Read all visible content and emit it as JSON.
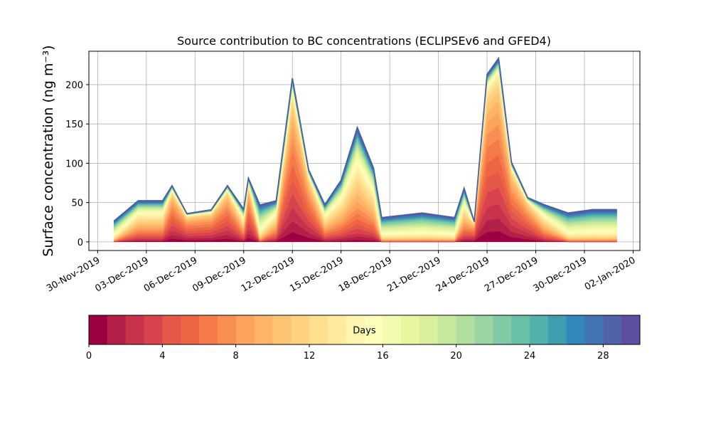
{
  "chart_data": {
    "type": "stacked_area",
    "title": "Source contribution to BC concentrations (ECLIPSEv6 and GFED4)",
    "y_label": "Surface concentration (ng m⁻³)",
    "x": [
      "2019-12-01T00:00",
      "2019-12-02T12:00",
      "2019-12-04T00:00",
      "2019-12-04T14:00",
      "2019-12-05T12:00",
      "2019-12-07T00:00",
      "2019-12-08T00:00",
      "2019-12-09T00:00",
      "2019-12-09T07:00",
      "2019-12-10T00:00",
      "2019-12-11T00:00",
      "2019-12-12T00:00",
      "2019-12-13T00:00",
      "2019-12-14T00:00",
      "2019-12-15T00:00",
      "2019-12-16T00:00",
      "2019-12-17T00:00",
      "2019-12-17T12:00",
      "2019-12-20T00:00",
      "2019-12-22T00:00",
      "2019-12-22T14:00",
      "2019-12-23T05:00",
      "2019-12-24T00:00",
      "2019-12-24T17:00",
      "2019-12-25T12:00",
      "2019-12-26T12:00",
      "2019-12-27T12:00",
      "2019-12-29T00:00",
      "2019-12-30T12:00",
      "2020-01-01T00:00"
    ],
    "xlim": [
      "2019-11-29T11:00",
      "2020-01-02T10:00"
    ],
    "xticks": [
      {
        "value": "2019-11-30T00:00",
        "label": "30-Nov-2019"
      },
      {
        "value": "2019-12-03T00:00",
        "label": "03-Dec-2019"
      },
      {
        "value": "2019-12-06T00:00",
        "label": "06-Dec-2019"
      },
      {
        "value": "2019-12-09T00:00",
        "label": "09-Dec-2019"
      },
      {
        "value": "2019-12-12T00:00",
        "label": "12-Dec-2019"
      },
      {
        "value": "2019-12-15T00:00",
        "label": "15-Dec-2019"
      },
      {
        "value": "2019-12-18T00:00",
        "label": "18-Dec-2019"
      },
      {
        "value": "2019-12-21T00:00",
        "label": "21-Dec-2019"
      },
      {
        "value": "2019-12-24T00:00",
        "label": "24-Dec-2019"
      },
      {
        "value": "2019-12-27T00:00",
        "label": "27-Dec-2019"
      },
      {
        "value": "2019-12-30T00:00",
        "label": "30-Dec-2019"
      },
      {
        "value": "2020-01-02T00:00",
        "label": "02-Jan-2020"
      }
    ],
    "ylim": [
      -11,
      242.5
    ],
    "yticks": [
      0,
      50,
      100,
      150,
      200
    ],
    "grid": true,
    "outline_color": "#4a5fa5",
    "series": [
      {
        "color": "#9e0142",
        "values": [
          0,
          1,
          1,
          4.2,
          2.1,
          2.4,
          4.2,
          0.8,
          4.8,
          0,
          1,
          12.3,
          5.4,
          0.9,
          1.5,
          2.8,
          1.8,
          0,
          0,
          0,
          1.3,
          1.5,
          12.6,
          13.8,
          6,
          3.3,
          0.9,
          0,
          0,
          0
        ]
      },
      {
        "color": "#b41f48",
        "values": [
          0,
          1.5,
          1.5,
          4.9,
          2.5,
          2.8,
          4.9,
          1.2,
          5.6,
          0,
          1.5,
          14.4,
          6.3,
          1.4,
          2.3,
          4.2,
          2.7,
          0,
          0,
          0,
          2,
          1.8,
          14.7,
          16.1,
          7,
          3.9,
          1.4,
          0,
          0,
          0
        ]
      },
      {
        "color": "#c8324a",
        "values": [
          0.1,
          1.5,
          1.5,
          5.6,
          2.8,
          3.2,
          5.6,
          1.2,
          6.4,
          0.2,
          1.5,
          16.4,
          7.2,
          1.4,
          2.3,
          4.2,
          2.7,
          0.2,
          0.2,
          0.2,
          2,
          2,
          16.8,
          18.4,
          8,
          4.4,
          1.4,
          0.2,
          0.2,
          0.2
        ]
      },
      {
        "color": "#d8434e",
        "values": [
          0.1,
          2,
          2,
          6.3,
          3.2,
          3.6,
          6.3,
          1.6,
          7.2,
          0.2,
          2,
          18.5,
          8.1,
          1.8,
          3,
          5.6,
          3.6,
          0.2,
          0.2,
          0.2,
          2.6,
          2.3,
          18.9,
          20.7,
          9,
          5,
          1.8,
          0.2,
          0.2,
          0.2
        ]
      },
      {
        "color": "#e55749",
        "values": [
          0.3,
          2,
          2,
          6.3,
          3.2,
          3.6,
          6.3,
          1.6,
          7.2,
          0.5,
          2,
          18.5,
          8.1,
          1.8,
          3,
          5.6,
          3.6,
          0.3,
          0.4,
          0.3,
          2.6,
          2.3,
          18.9,
          20.7,
          9,
          5,
          1.8,
          0.4,
          0.4,
          0.4
        ]
      },
      {
        "color": "#ee6544",
        "values": [
          0.3,
          2.5,
          2.5,
          6.3,
          3.2,
          3.6,
          6.3,
          2,
          7.2,
          0.5,
          2.5,
          18.5,
          8.1,
          2.3,
          3.8,
          7,
          4.5,
          0.3,
          0.4,
          0.3,
          3.3,
          2.3,
          18.9,
          20.7,
          9,
          5,
          2.3,
          0.4,
          0.4,
          0.4
        ]
      },
      {
        "color": "#f57a4a",
        "values": [
          0.3,
          2.5,
          2.5,
          6.3,
          3.2,
          3.6,
          6.3,
          2,
          7.2,
          0.5,
          2.5,
          18.5,
          8.1,
          2.3,
          3.8,
          7,
          4.5,
          0.3,
          0.4,
          0.3,
          3.3,
          2.3,
          18.9,
          20.7,
          9,
          5,
          2.3,
          0.4,
          0.4,
          0.4
        ]
      },
      {
        "color": "#f98e52",
        "values": [
          0.4,
          2.5,
          2.5,
          5.6,
          2.8,
          3.2,
          5.6,
          2,
          6.4,
          0.7,
          2.5,
          16.4,
          7.2,
          2.3,
          3.8,
          7,
          4.5,
          0.5,
          0.5,
          0.5,
          3.3,
          2,
          16.8,
          18.4,
          8,
          4.4,
          2.3,
          0.5,
          0.6,
          0.6
        ]
      },
      {
        "color": "#fca35d",
        "values": [
          0.5,
          3,
          3,
          4.9,
          2.5,
          2.8,
          4.9,
          2.4,
          5.6,
          0.9,
          3,
          14.4,
          6.3,
          2.7,
          4.5,
          8.4,
          5.4,
          0.6,
          0.7,
          0.6,
          3.9,
          1.8,
          14.7,
          16.1,
          7,
          3.9,
          2.7,
          0.7,
          0.8,
          0.8
        ]
      },
      {
        "color": "#fdb466",
        "values": [
          0.5,
          3,
          3,
          4.2,
          2.1,
          2.4,
          4.2,
          2.4,
          4.8,
          0.9,
          3,
          12.3,
          5.4,
          2.7,
          4.5,
          8.4,
          5.4,
          0.6,
          0.7,
          0.6,
          3.9,
          1.5,
          12.6,
          13.8,
          6,
          3.3,
          2.7,
          0.7,
          0.8,
          0.8
        ]
      },
      {
        "color": "#fdc473",
        "values": [
          0.8,
          3,
          3,
          3.5,
          1.8,
          2,
          3.5,
          2.4,
          4,
          1.4,
          3,
          10.3,
          4.5,
          2.7,
          4.5,
          8.4,
          5.4,
          0.9,
          1.1,
          0.9,
          3.9,
          1.3,
          10.5,
          11.5,
          5,
          2.8,
          2.7,
          1.1,
          1.2,
          1.2
        ]
      },
      {
        "color": "#fed281",
        "values": [
          0.8,
          3,
          3,
          2.8,
          1.4,
          1.6,
          2.8,
          2.4,
          3.2,
          1.4,
          3,
          8.2,
          3.6,
          2.7,
          4.5,
          8.4,
          5.4,
          0.9,
          1.1,
          0.9,
          3.9,
          1,
          8.4,
          9.2,
          4,
          2.2,
          2.7,
          1.1,
          1.2,
          1.2
        ]
      },
      {
        "color": "#fedf8f",
        "values": [
          1,
          3,
          3,
          2.1,
          1.1,
          1.2,
          2.1,
          2.4,
          2.4,
          1.8,
          3,
          6.2,
          2.7,
          2.7,
          4.5,
          8.4,
          5.4,
          1.2,
          1.4,
          1.2,
          3.9,
          0.8,
          6.3,
          6.9,
          3,
          1.7,
          2.7,
          1.4,
          1.6,
          1.6
        ]
      },
      {
        "color": "#feeb9d",
        "values": [
          1.3,
          2.5,
          2.5,
          1.4,
          0.7,
          0.8,
          1.4,
          2,
          1.6,
          2.3,
          2.5,
          4.1,
          1.8,
          2.3,
          3.8,
          7,
          4.5,
          1.5,
          1.8,
          1.5,
          3.3,
          0.5,
          4.2,
          4.6,
          2,
          1.1,
          2.3,
          1.8,
          2,
          2
        ]
      },
      {
        "color": "#fff5ae",
        "values": [
          1.5,
          2.5,
          2.5,
          1.1,
          0.5,
          0.6,
          1.1,
          2,
          1.2,
          2.7,
          2.5,
          3.1,
          1.4,
          2.3,
          3.8,
          7,
          4.5,
          1.8,
          2.1,
          1.8,
          3.3,
          0.4,
          3.2,
          3.5,
          1.5,
          0.8,
          2.3,
          2.1,
          2.4,
          2.4
        ]
      },
      {
        "color": "#fbfdb9",
        "values": [
          1.8,
          2,
          2,
          0.7,
          0.4,
          0.4,
          0.7,
          1.6,
          0.8,
          3.2,
          2,
          2.1,
          0.9,
          1.8,
          3,
          5.6,
          3.6,
          2.1,
          2.5,
          2.1,
          2.6,
          0.3,
          2.1,
          2.3,
          1,
          0.6,
          1.8,
          2.5,
          2.8,
          2.8
        ]
      },
      {
        "color": "#f3faad",
        "values": [
          1.8,
          2,
          2,
          0.7,
          0.4,
          0.4,
          0.7,
          1.6,
          0.8,
          3.2,
          2,
          2.1,
          0.9,
          1.8,
          3,
          5.6,
          3.6,
          2.1,
          2.5,
          2.1,
          2.6,
          0.3,
          2.1,
          2.3,
          1,
          0.6,
          1.8,
          2.5,
          2.8,
          2.8
        ]
      },
      {
        "color": "#e9f69f",
        "values": [
          1.8,
          1.5,
          1.5,
          0.4,
          0.2,
          0.2,
          0.4,
          1.2,
          0.4,
          3.2,
          1.5,
          1,
          0.5,
          1.4,
          2.3,
          4.2,
          2.7,
          2.1,
          2.5,
          2.1,
          2,
          0.1,
          1.1,
          1.2,
          0.5,
          0.3,
          1.4,
          2.5,
          2.8,
          2.8
        ]
      },
      {
        "color": "#d9ef9b",
        "values": [
          1.5,
          1.5,
          1.5,
          0.4,
          0.2,
          0.2,
          0.4,
          1.2,
          0.4,
          2.7,
          1.5,
          1,
          0.5,
          1.4,
          2.3,
          4.2,
          2.7,
          1.8,
          2.1,
          1.8,
          2,
          0.1,
          1.1,
          1.2,
          0.5,
          0.3,
          1.4,
          2.1,
          2.4,
          2.4
        ]
      },
      {
        "color": "#c6e89c",
        "values": [
          1.5,
          1,
          1,
          0.4,
          0.2,
          0.2,
          0.4,
          0.8,
          0.4,
          2.7,
          1,
          1,
          0.5,
          0.9,
          1.5,
          2.8,
          1.8,
          1.8,
          2.1,
          1.8,
          1.3,
          0.1,
          1.1,
          1.2,
          0.5,
          0.3,
          0.9,
          2.1,
          2.4,
          2.4
        ]
      },
      {
        "color": "#b1df9f",
        "values": [
          1.3,
          1,
          1,
          0.4,
          0.2,
          0.2,
          0.4,
          0.8,
          0.4,
          2.3,
          1,
          1,
          0.5,
          0.9,
          1.5,
          2.8,
          1.8,
          1.5,
          1.8,
          1.5,
          1.3,
          0.1,
          1.1,
          1.2,
          0.5,
          0.3,
          0.9,
          1.8,
          2,
          2
        ]
      },
      {
        "color": "#99d5a4",
        "values": [
          1.3,
          1,
          1,
          0.4,
          0.2,
          0.2,
          0.4,
          0.8,
          0.4,
          2.3,
          1,
          1,
          0.5,
          0.9,
          1.5,
          2.8,
          1.8,
          1.5,
          1.8,
          1.5,
          1.3,
          0.1,
          1.1,
          1.2,
          0.5,
          0.3,
          0.9,
          1.8,
          2,
          2
        ]
      },
      {
        "color": "#80cba5",
        "values": [
          1.3,
          1,
          1,
          0.3,
          0.1,
          0.2,
          0.3,
          0.8,
          0.3,
          2.3,
          1,
          0.8,
          0.4,
          0.9,
          1.5,
          2.8,
          1.8,
          1.5,
          1.8,
          1.5,
          1.3,
          0.1,
          0.8,
          0.9,
          0.4,
          0.2,
          0.9,
          1.8,
          2,
          2
        ]
      },
      {
        "color": "#68c1a6",
        "values": [
          1,
          1,
          1,
          0.3,
          0.1,
          0.2,
          0.3,
          0.8,
          0.3,
          1.8,
          1,
          0.8,
          0.4,
          0.9,
          1.5,
          2.8,
          1.8,
          1.2,
          1.4,
          1.2,
          1.3,
          0.1,
          0.8,
          0.9,
          0.4,
          0.2,
          0.9,
          1.4,
          1.6,
          1.6
        ]
      },
      {
        "color": "#53b0ab",
        "values": [
          1,
          0.8,
          0.8,
          0.3,
          0.1,
          0.2,
          0.3,
          0.6,
          0.3,
          1.8,
          0.8,
          0.8,
          0.4,
          0.7,
          1.1,
          2.1,
          1.4,
          1.2,
          1.4,
          1.2,
          1,
          0.1,
          0.8,
          0.9,
          0.4,
          0.2,
          0.7,
          1.4,
          1.6,
          1.6
        ]
      },
      {
        "color": "#409caf",
        "values": [
          1,
          0.8,
          0.8,
          0.3,
          0.1,
          0.2,
          0.3,
          0.6,
          0.3,
          1.8,
          0.8,
          0.8,
          0.4,
          0.7,
          1.1,
          2.1,
          1.4,
          1.2,
          1.4,
          1.2,
          1,
          0.1,
          0.8,
          0.9,
          0.4,
          0.2,
          0.7,
          1.4,
          1.6,
          1.6
        ]
      },
      {
        "color": "#3288bd",
        "values": [
          0.8,
          0.8,
          0.8,
          0.3,
          0.1,
          0.2,
          0.3,
          0.6,
          0.3,
          1.4,
          0.8,
          0.8,
          0.4,
          0.7,
          1.1,
          2.1,
          1.4,
          0.9,
          1.1,
          0.9,
          1,
          0.1,
          0.8,
          0.9,
          0.4,
          0.2,
          0.7,
          1.1,
          1.2,
          1.2
        ]
      },
      {
        "color": "#4273b3",
        "values": [
          0.8,
          0.8,
          0.8,
          0.3,
          0.1,
          0.2,
          0.3,
          0.6,
          0.3,
          1.4,
          0.8,
          0.8,
          0.4,
          0.7,
          1.1,
          2.1,
          1.4,
          0.9,
          1.1,
          0.9,
          1,
          0.1,
          0.8,
          0.9,
          0.4,
          0.2,
          0.7,
          1.1,
          1.2,
          1.2
        ]
      },
      {
        "color": "#5262a9",
        "values": [
          0.8,
          0.8,
          0.8,
          0.4,
          0.2,
          0.2,
          0.4,
          0.6,
          0.4,
          1.4,
          0.8,
          1,
          0.5,
          0.7,
          1.1,
          2.1,
          1.4,
          0.9,
          1.1,
          0.9,
          1,
          0.1,
          1.1,
          1.2,
          0.5,
          0.3,
          0.7,
          1.1,
          1.2,
          1.2
        ]
      },
      {
        "color": "#5e4fa2",
        "values": [
          0.8,
          0.8,
          0.8,
          0.4,
          0.2,
          0.2,
          0.4,
          0.6,
          0.4,
          1.4,
          0.8,
          1,
          0.5,
          0.7,
          1.1,
          2.1,
          1.4,
          0.9,
          1.1,
          0.9,
          1,
          0.1,
          1.1,
          1.2,
          0.5,
          0.3,
          0.7,
          1.1,
          1.2,
          1.2
        ]
      }
    ],
    "colorbar": {
      "label": "Days",
      "lim": [
        0,
        30
      ],
      "ticks": [
        0,
        4,
        8,
        12,
        16,
        20,
        24,
        28
      ]
    }
  }
}
